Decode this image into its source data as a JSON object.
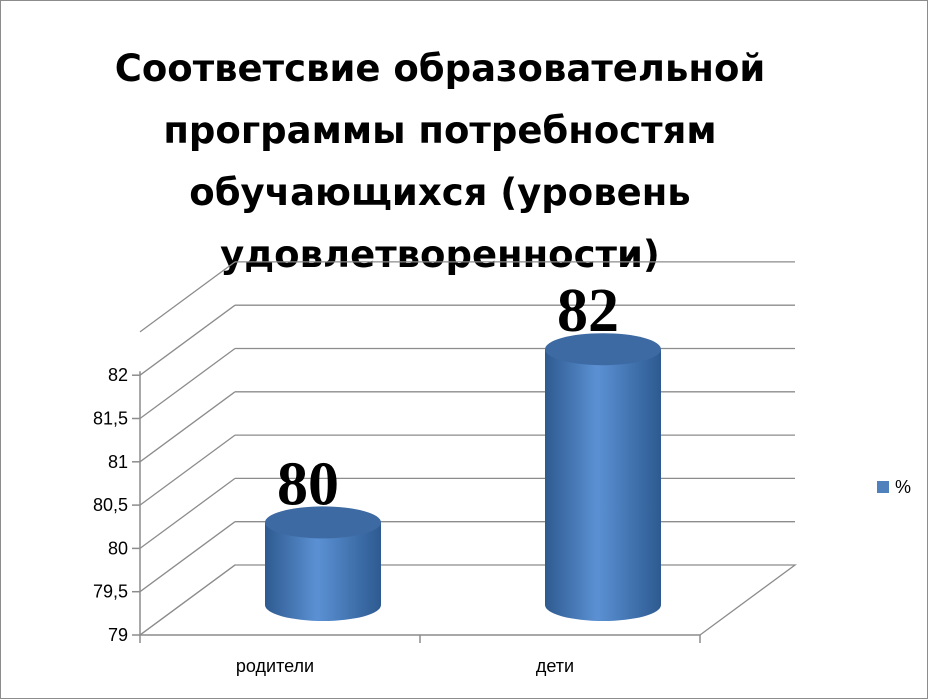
{
  "chart_data": {
    "type": "bar",
    "title": "Соответсвие образовательной программы потребностям обучающихся (уровень удовлетворенности)",
    "categories": [
      "родители",
      "дети"
    ],
    "series": [
      {
        "name": "%",
        "values": [
          80,
          82
        ],
        "color": "#4f81bd"
      }
    ],
    "data_labels": [
      "80",
      "82"
    ],
    "ylim": [
      79,
      82.5
    ],
    "yticks": [
      "79",
      "79,5",
      "80",
      "80,5",
      "81",
      "81,5",
      "82"
    ],
    "yticks_values": [
      79,
      79.5,
      80,
      80.5,
      81,
      81.5,
      82
    ],
    "grid": true,
    "legend": "right",
    "style": "3d-cylinder"
  }
}
